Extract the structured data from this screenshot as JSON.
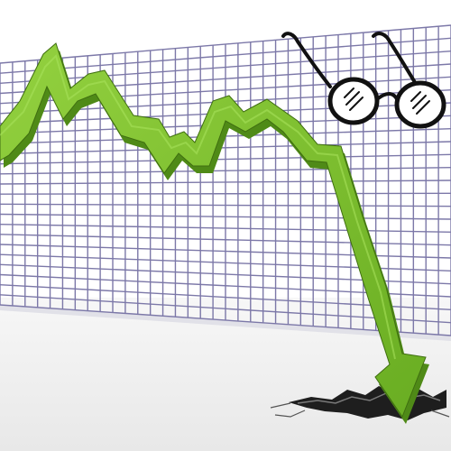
{
  "scene": {
    "subject": "falling-trend-arrow",
    "trend": "downward",
    "colors": {
      "background": "#ffffff",
      "floor": "#eeeeee",
      "grid_line": "#7c78a8",
      "grid_shadow": "#c9c8d6",
      "arrow_face": "#7dc130",
      "arrow_side": "#4f8a17",
      "arrow_edge": "#3f6e10",
      "crack": "#2b2b2b",
      "glasses": "#111111"
    },
    "icons": [
      "trend-arrow-icon",
      "glasses-icon",
      "ground-crack-icon"
    ]
  }
}
